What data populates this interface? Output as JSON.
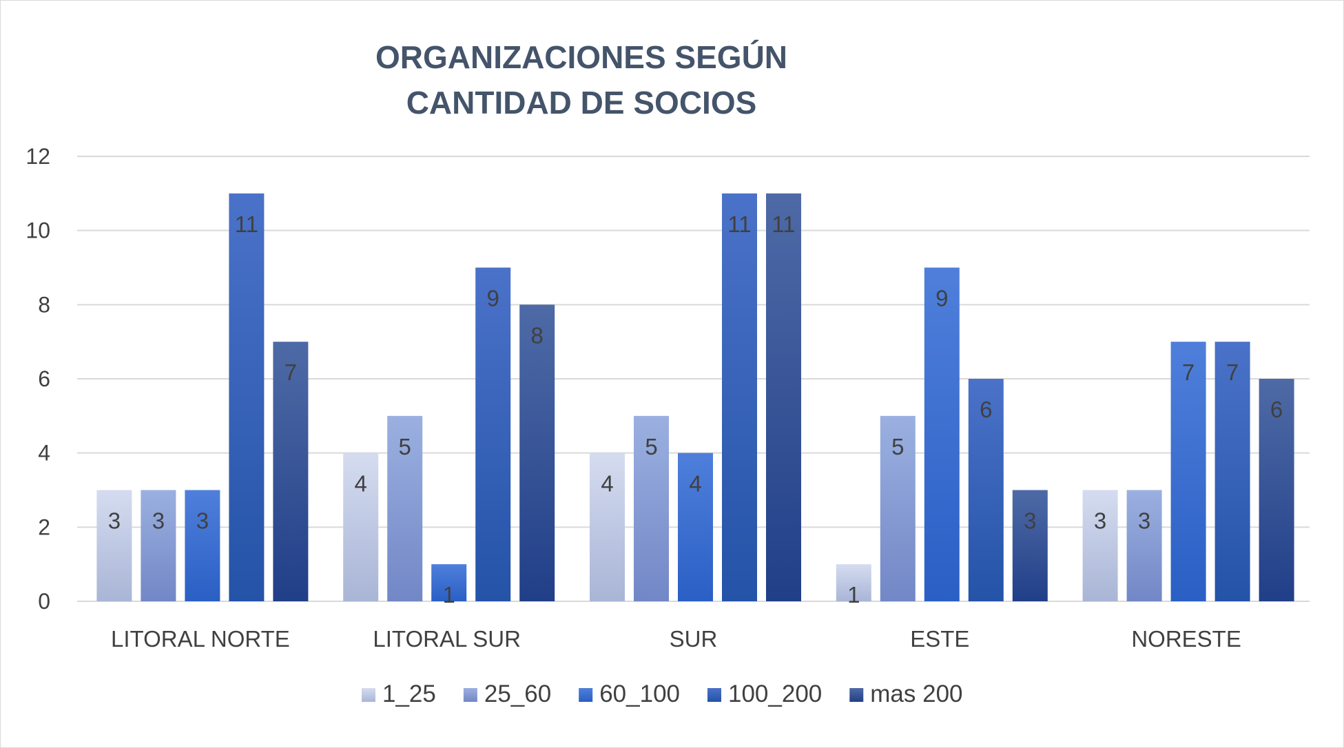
{
  "chart_data": {
    "type": "bar",
    "title_lines": [
      "ORGANIZACIONES SEGÚN",
      "CANTIDAD DE SOCIOS"
    ],
    "xlabel": "",
    "ylabel": "",
    "ylim": [
      0,
      12
    ],
    "yticks": [
      0,
      2,
      4,
      6,
      8,
      10,
      12
    ],
    "grid": true,
    "legend_position": "bottom",
    "categories": [
      "LITORAL NORTE",
      "LITORAL SUR",
      "SUR",
      "ESTE",
      "NORESTE"
    ],
    "series": [
      {
        "name": "1_25",
        "values": [
          3,
          4,
          4,
          1,
          3
        ],
        "color_top": "#d5dcf0",
        "color_bottom": "#a9b5d6"
      },
      {
        "name": "25_60",
        "values": [
          3,
          5,
          5,
          5,
          3
        ],
        "color_top": "#9bb0e0",
        "color_bottom": "#7287c6"
      },
      {
        "name": "60_100",
        "values": [
          3,
          1,
          4,
          9,
          7
        ],
        "color_top": "#4f7fdb",
        "color_bottom": "#2a5fc4"
      },
      {
        "name": "100_200",
        "values": [
          11,
          9,
          11,
          6,
          7
        ],
        "color_top": "#4a72c8",
        "color_bottom": "#2453a8"
      },
      {
        "name": "mas 200",
        "values": [
          7,
          8,
          11,
          3,
          6
        ],
        "color_top": "#4e6aa6",
        "color_bottom": "#213f88"
      }
    ]
  }
}
